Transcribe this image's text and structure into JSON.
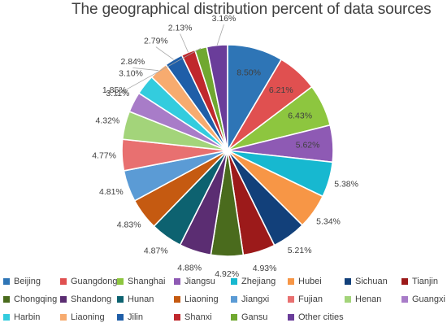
{
  "chart_data": {
    "type": "pie",
    "title": "The geographical distribution percent of data sources",
    "categories": [
      "Beijing",
      "Guangdong",
      "Shanghai",
      "Jiangsu",
      "Zhejiang",
      "Hubei",
      "Sichuan",
      "Tianjin",
      "Chongqing",
      "Shandong",
      "Hunan",
      "Liaoning",
      "Jiangxi",
      "Fujian",
      "Henan",
      "Guangxi",
      "Harbin",
      "Liaoning",
      "Jilin",
      "Shanxi",
      "Gansu",
      "Other cities"
    ],
    "values": [
      8.5,
      6.21,
      6.43,
      5.62,
      5.38,
      5.34,
      5.21,
      4.93,
      4.92,
      4.88,
      4.87,
      4.83,
      4.81,
      4.77,
      4.32,
      3.11,
      3.1,
      2.84,
      2.79,
      2.13,
      1.85,
      3.16
    ],
    "data_labels": [
      "8.50%",
      "6.21%",
      "6.43%",
      "5.62%",
      "5.38%",
      "5.34%",
      "5.21%",
      "4.93%",
      "4.92%",
      "4.88%",
      "4.87%",
      "4.83%",
      "4.81%",
      "4.77%",
      "4.32%",
      "3.11%",
      "3.10%",
      "2.84%",
      "2.79%",
      "2.13%",
      "1.85%",
      "3.16%"
    ],
    "colors": [
      "#2e75b6",
      "#e05050",
      "#8dc63f",
      "#8e5ab4",
      "#17b8d0",
      "#f79646",
      "#12407a",
      "#9c1a1a",
      "#4a6b1d",
      "#5b2d72",
      "#0d6270",
      "#c55a11",
      "#5b9bd5",
      "#e87070",
      "#a3d47a",
      "#a87cc8",
      "#33ccde",
      "#f7ab6f",
      "#1f5ea8",
      "#c0282d",
      "#70a830",
      "#6a3d9a"
    ],
    "legend_position": "bottom"
  }
}
